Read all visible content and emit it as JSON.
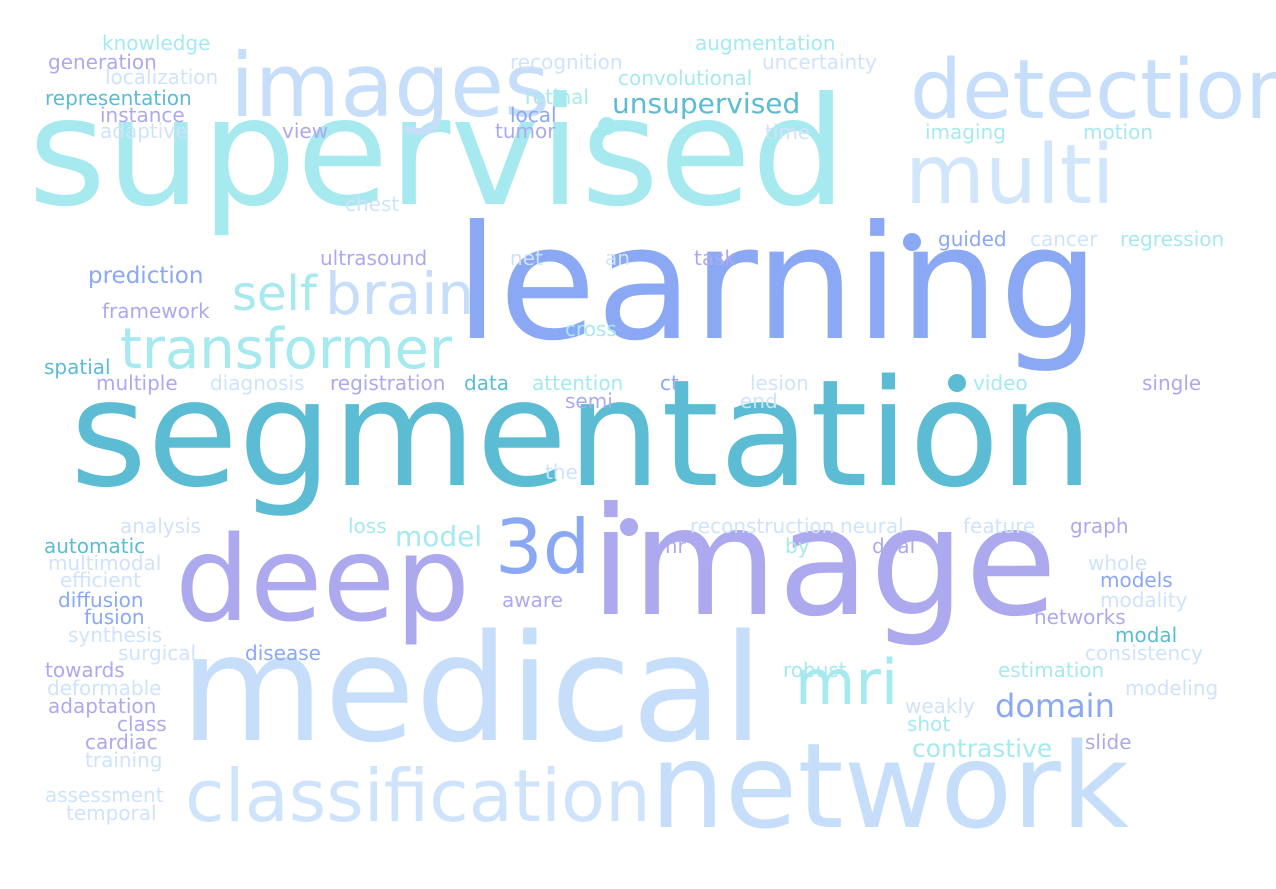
{
  "palette": {
    "pale_blue": "#c6defa",
    "light_cyan": "#a6e9ef",
    "teal": "#5bbcd3",
    "periwinkle": "#8aa8f4",
    "lavender": "#ada9ef",
    "medium_blue": "#7f9ee6"
  },
  "words": [
    {
      "text": "supervised",
      "color": "#a6e9ef"
    },
    {
      "text": "learning",
      "color": "#8aa8f4"
    },
    {
      "text": "segmentation",
      "color": "#5bbcd3"
    },
    {
      "text": "image",
      "color": "#ada9ef"
    },
    {
      "text": "medical",
      "color": "#c6defa"
    },
    {
      "text": "network",
      "color": "#c6defa"
    },
    {
      "text": "deep",
      "color": "#ada9ef"
    },
    {
      "text": "images",
      "color": "#c6defa"
    },
    {
      "text": "detection",
      "color": "#c6defa"
    },
    {
      "text": "multi",
      "color": "#d2e6fb"
    },
    {
      "text": "classification",
      "color": "#cfe3fb"
    },
    {
      "text": "transformer",
      "color": "#a6e9ef"
    },
    {
      "text": "brain",
      "color": "#c6defa"
    },
    {
      "text": "self",
      "color": "#a6e9ef"
    },
    {
      "text": "3d",
      "color": "#8aa8f4"
    },
    {
      "text": "mri",
      "color": "#a6e9ef"
    },
    {
      "text": "domain",
      "color": "#8aa8f4"
    },
    {
      "text": "unsupervised",
      "color": "#5bbcd3"
    },
    {
      "text": "contrastive",
      "color": "#a6e9ef"
    },
    {
      "text": "model",
      "color": "#a6e9ef"
    },
    {
      "text": "prediction",
      "color": "#8aa8f4"
    },
    {
      "text": "knowledge",
      "color": "#a6e9ef"
    },
    {
      "text": "generation",
      "color": "#ada9ef"
    },
    {
      "text": "localization",
      "color": "#cfe3fb"
    },
    {
      "text": "representation",
      "color": "#5bbcd3"
    },
    {
      "text": "instance",
      "color": "#ada9ef"
    },
    {
      "text": "adaptive",
      "color": "#cfe3fb"
    },
    {
      "text": "recognition",
      "color": "#cfe3fb"
    },
    {
      "text": "augmentation",
      "color": "#a6e9ef"
    },
    {
      "text": "convolutional",
      "color": "#a6e9ef"
    },
    {
      "text": "uncertainty",
      "color": "#cfe3fb"
    },
    {
      "text": "retinal",
      "color": "#a6e9ef"
    },
    {
      "text": "local",
      "color": "#8aa8f4"
    },
    {
      "text": "tumor",
      "color": "#ada9ef"
    },
    {
      "text": "view",
      "color": "#ada9ef"
    },
    {
      "text": "time",
      "color": "#cfe3fb"
    },
    {
      "text": "imaging",
      "color": "#a6e9ef"
    },
    {
      "text": "motion",
      "color": "#a6e9ef"
    },
    {
      "text": "chest",
      "color": "#cfe3fb"
    },
    {
      "text": "guided",
      "color": "#8aa8f4"
    },
    {
      "text": "cancer",
      "color": "#cfe3fb"
    },
    {
      "text": "regression",
      "color": "#a6e9ef"
    },
    {
      "text": "ultrasound",
      "color": "#ada9ef"
    },
    {
      "text": "net",
      "color": "#cfe3fb"
    },
    {
      "text": "an",
      "color": "#cfe3fb"
    },
    {
      "text": "task",
      "color": "#ada9ef"
    },
    {
      "text": "framework",
      "color": "#ada9ef"
    },
    {
      "text": "cross",
      "color": "#a6e9ef"
    },
    {
      "text": "spatial",
      "color": "#5bbcd3"
    },
    {
      "text": "multiple",
      "color": "#ada9ef"
    },
    {
      "text": "diagnosis",
      "color": "#cfe3fb"
    },
    {
      "text": "registration",
      "color": "#ada9ef"
    },
    {
      "text": "data",
      "color": "#5bbcd3"
    },
    {
      "text": "attention",
      "color": "#a6e9ef"
    },
    {
      "text": "ct",
      "color": "#8aa8f4"
    },
    {
      "text": "lesion",
      "color": "#cfe3fb"
    },
    {
      "text": "video",
      "color": "#a6e9ef"
    },
    {
      "text": "single",
      "color": "#ada9ef"
    },
    {
      "text": "semi",
      "color": "#ada9ef"
    },
    {
      "text": "end",
      "color": "#cfe3fb"
    },
    {
      "text": "the",
      "color": "#cfe3fb"
    },
    {
      "text": "analysis",
      "color": "#cfe3fb"
    },
    {
      "text": "loss",
      "color": "#a6e9ef"
    },
    {
      "text": "reconstruction",
      "color": "#cfe3fb"
    },
    {
      "text": "neural",
      "color": "#cfe3fb"
    },
    {
      "text": "feature",
      "color": "#cfe3fb"
    },
    {
      "text": "graph",
      "color": "#ada9ef"
    },
    {
      "text": "automatic",
      "color": "#5bbcd3"
    },
    {
      "text": "mr",
      "color": "#ada9ef"
    },
    {
      "text": "by",
      "color": "#a6e9ef"
    },
    {
      "text": "dual",
      "color": "#ada9ef"
    },
    {
      "text": "multimodal",
      "color": "#cfe3fb"
    },
    {
      "text": "whole",
      "color": "#cfe3fb"
    },
    {
      "text": "efficient",
      "color": "#cfe3fb"
    },
    {
      "text": "models",
      "color": "#8aa8f4"
    },
    {
      "text": "diffusion",
      "color": "#8aa8f4"
    },
    {
      "text": "aware",
      "color": "#ada9ef"
    },
    {
      "text": "modality",
      "color": "#cfe3fb"
    },
    {
      "text": "fusion",
      "color": "#8aa8f4"
    },
    {
      "text": "networks",
      "color": "#ada9ef"
    },
    {
      "text": "synthesis",
      "color": "#cfe3fb"
    },
    {
      "text": "modal",
      "color": "#5bbcd3"
    },
    {
      "text": "surgical",
      "color": "#cfe3fb"
    },
    {
      "text": "disease",
      "color": "#8aa8f4"
    },
    {
      "text": "consistency",
      "color": "#cfe3fb"
    },
    {
      "text": "towards",
      "color": "#ada9ef"
    },
    {
      "text": "robust",
      "color": "#a6e9ef"
    },
    {
      "text": "estimation",
      "color": "#a6e9ef"
    },
    {
      "text": "deformable",
      "color": "#cfe3fb"
    },
    {
      "text": "modeling",
      "color": "#cfe3fb"
    },
    {
      "text": "adaptation",
      "color": "#ada9ef"
    },
    {
      "text": "weakly",
      "color": "#cfe3fb"
    },
    {
      "text": "class",
      "color": "#ada9ef"
    },
    {
      "text": "shot",
      "color": "#a6e9ef"
    },
    {
      "text": "cardiac",
      "color": "#ada9ef"
    },
    {
      "text": "slide",
      "color": "#ada9ef"
    },
    {
      "text": "training",
      "color": "#cfe3fb"
    },
    {
      "text": "assessment",
      "color": "#cfe3fb"
    },
    {
      "text": "temporal",
      "color": "#cfe3fb"
    }
  ],
  "dots": [
    {
      "name": "dot-1",
      "color": "#a6e9ef"
    },
    {
      "name": "dot-2",
      "color": "#8aa8f4"
    },
    {
      "name": "dot-3",
      "color": "#5bbcd3"
    },
    {
      "name": "dot-4",
      "color": "#ada9ef"
    }
  ]
}
